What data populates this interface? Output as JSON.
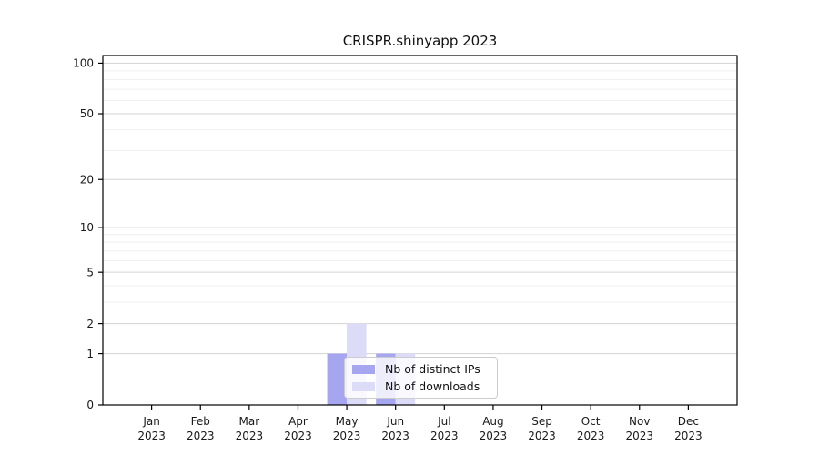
{
  "title": "CRISPR.shinyapp 2023",
  "chart_data": {
    "type": "bar",
    "title": "CRISPR.shinyapp 2023",
    "x_categories": [
      "Jan 2023",
      "Feb 2023",
      "Mar 2023",
      "Apr 2023",
      "May 2023",
      "Jun 2023",
      "Jul 2023",
      "Aug 2023",
      "Sep 2023",
      "Oct 2023",
      "Nov 2023",
      "Dec 2023"
    ],
    "series": [
      {
        "name": "Nb of distinct IPs",
        "color": "#a5a5f0",
        "values": [
          0,
          0,
          0,
          0,
          1,
          1,
          0,
          0,
          0,
          0,
          0,
          0
        ]
      },
      {
        "name": "Nb of downloads",
        "color": "#dcdcf8",
        "values": [
          0,
          0,
          0,
          0,
          2,
          1,
          0,
          0,
          0,
          0,
          0,
          0
        ]
      }
    ],
    "y_scale": "log1p",
    "y_major_ticks": [
      0,
      1,
      2,
      5,
      10,
      20,
      50,
      100
    ],
    "y_minor_gridlines": [
      3,
      4,
      6,
      7,
      8,
      9,
      30,
      40,
      60,
      70,
      80,
      90
    ],
    "ylim": [
      0,
      111
    ],
    "grid": true,
    "legend_position": "lower center"
  },
  "colors": {
    "background": "#ffffff",
    "axis": "#000000",
    "text": "#1a1a1a",
    "grid_major": "#d2d2d2",
    "grid_minor": "#efefef",
    "legend_border": "#cccccc"
  }
}
